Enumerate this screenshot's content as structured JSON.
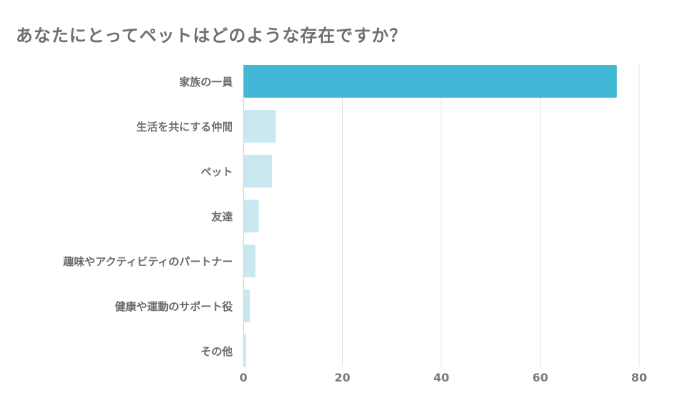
{
  "chart_data": {
    "type": "bar",
    "orientation": "horizontal",
    "title": "あなたにとってペットはどのような存在ですか？",
    "categories": [
      "家族の一員",
      "生活を共にする仲間",
      "ペット",
      "友達",
      "趣味やアクティビティのパートナー",
      "健康や運動のサポート役",
      "その他"
    ],
    "values": [
      75.5,
      6.5,
      5.8,
      3.1,
      2.4,
      1.3,
      0.5
    ],
    "highlight_index": 0,
    "x_ticks": [
      0,
      20,
      40,
      60,
      80
    ],
    "xlim": [
      0,
      80
    ],
    "grid": true,
    "colors": {
      "highlight": "#42b8d6",
      "normal": "#c9e8f1",
      "grid": "#e3e3e3",
      "axis": "#bdbdbd"
    }
  }
}
